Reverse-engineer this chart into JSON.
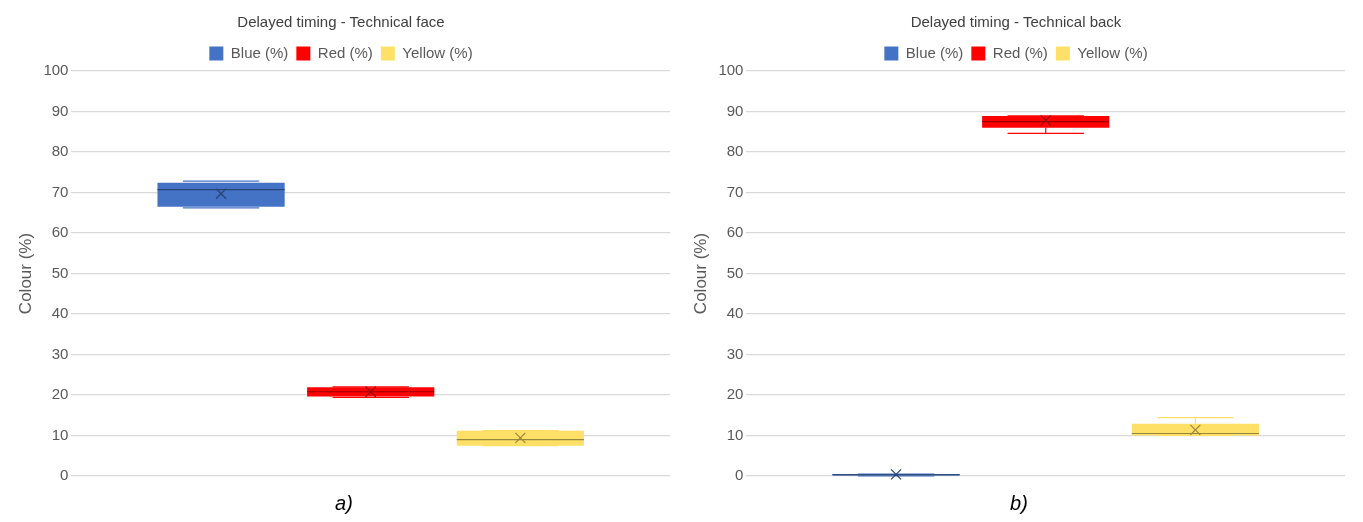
{
  "chart_data": [
    {
      "type": "box",
      "title": "Delayed timing - Technical face",
      "ylabel": "Colour (%)",
      "categories": [
        null
      ],
      "ylim": [
        0,
        100
      ],
      "yticks": [
        0,
        10,
        20,
        30,
        40,
        50,
        60,
        70,
        80,
        90,
        100
      ],
      "grid": "y",
      "legend": "top",
      "tick_labels": "y",
      "annotations": [
        "a)"
      ],
      "series": [
        {
          "name": "Blue (%)",
          "color": "#4472c4",
          "boxes": [
            {
              "low": 66.2,
              "q1": 66.5,
              "median": 70.7,
              "q3": 72.4,
              "high": 72.8,
              "mean": 69.7
            }
          ]
        },
        {
          "name": "Red (%)",
          "color": "#ff0000",
          "boxes": [
            {
              "low": 19.4,
              "q1": 19.6,
              "median": 20.8,
              "q3": 21.9,
              "high": 22,
              "mean": 20.8
            }
          ]
        },
        {
          "name": "Yellow (%)",
          "color": "#ffe066",
          "boxes": [
            {
              "low": 7.5,
              "q1": 7.5,
              "median": 9,
              "q3": 11.2,
              "high": 11.2,
              "mean": 9.4
            }
          ]
        }
      ]
    },
    {
      "type": "box",
      "title": "Delayed timing - Technical back",
      "ylabel": "Colour (%)",
      "categories": [
        null
      ],
      "ylim": [
        0,
        100
      ],
      "yticks": [
        0,
        10,
        20,
        30,
        40,
        50,
        60,
        70,
        80,
        90,
        100
      ],
      "grid": "y",
      "legend": "top",
      "tick_labels": "y",
      "annotations": [
        "b)"
      ],
      "series": [
        {
          "name": "Blue (%)",
          "color": "#4472c4",
          "boxes": [
            {
              "low": 0,
              "q1": 0,
              "median": 0.3,
              "q3": 0.5,
              "high": 0.5,
              "mean": 0.4
            }
          ]
        },
        {
          "name": "Red (%)",
          "color": "#ff0000",
          "boxes": [
            {
              "low": 84.6,
              "q1": 86,
              "median": 87.5,
              "q3": 88.9,
              "high": 88.9,
              "mean": 87.8
            }
          ]
        },
        {
          "name": "Yellow (%)",
          "color": "#ffe066",
          "boxes": [
            {
              "low": 10,
              "q1": 10,
              "median": 10.5,
              "q3": 12.9,
              "high": 14.4,
              "mean": 11.4
            }
          ]
        }
      ]
    }
  ]
}
